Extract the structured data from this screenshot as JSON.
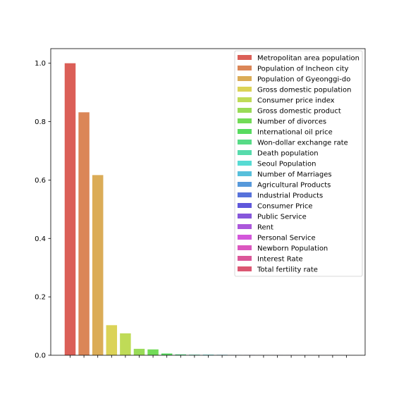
{
  "chart_data": {
    "type": "bar",
    "title": "",
    "xlabel": "",
    "ylabel": "",
    "ylim": [
      0,
      1.05
    ],
    "yticks": [
      "0.0",
      "0.2",
      "0.4",
      "0.6",
      "0.8",
      "1.0"
    ],
    "grid": false,
    "legend_position": "top-right",
    "series": [
      {
        "name": "Metropolitan area population",
        "value": 1.0,
        "color": "#db5f57"
      },
      {
        "name": "Population of Incheon city",
        "value": 0.832,
        "color": "#db8657"
      },
      {
        "name": "Population of Gyeonggi-do",
        "value": 0.617,
        "color": "#dbac57"
      },
      {
        "name": "Gross domestic population",
        "value": 0.103,
        "color": "#dbd357"
      },
      {
        "name": "Consumer price index",
        "value": 0.075,
        "color": "#bfdb57"
      },
      {
        "name": "Gross domestic product",
        "value": 0.022,
        "color": "#99db57"
      },
      {
        "name": "Number of divorces",
        "value": 0.02,
        "color": "#72db57"
      },
      {
        "name": "International oil price",
        "value": 0.006,
        "color": "#57db5f"
      },
      {
        "name": "Won-dollar exchange rate",
        "value": 0.003,
        "color": "#57db86"
      },
      {
        "name": "Death population",
        "value": 0.002,
        "color": "#57dbac"
      },
      {
        "name": "Seoul Population",
        "value": 0.002,
        "color": "#57dbd3"
      },
      {
        "name": "Number of Marriages",
        "value": 0.0015,
        "color": "#57bfdb"
      },
      {
        "name": "Agricultural Products",
        "value": 0.0005,
        "color": "#5799db"
      },
      {
        "name": "Industrial Products",
        "value": 0.0004,
        "color": "#5772db"
      },
      {
        "name": "Consumer Price",
        "value": 0.0003,
        "color": "#5f57db"
      },
      {
        "name": "Public Service",
        "value": 0.0002,
        "color": "#8657db"
      },
      {
        "name": "Rent",
        "value": 0.0002,
        "color": "#ac57db"
      },
      {
        "name": "Personal Service",
        "value": 0.0001,
        "color": "#d357db"
      },
      {
        "name": "Newborn Population",
        "value": 0.0001,
        "color": "#db57bf"
      },
      {
        "name": "Interest Rate",
        "value": 0.0001,
        "color": "#db5799"
      },
      {
        "name": "Total fertility rate",
        "value": 0.0001,
        "color": "#db5772"
      }
    ]
  }
}
